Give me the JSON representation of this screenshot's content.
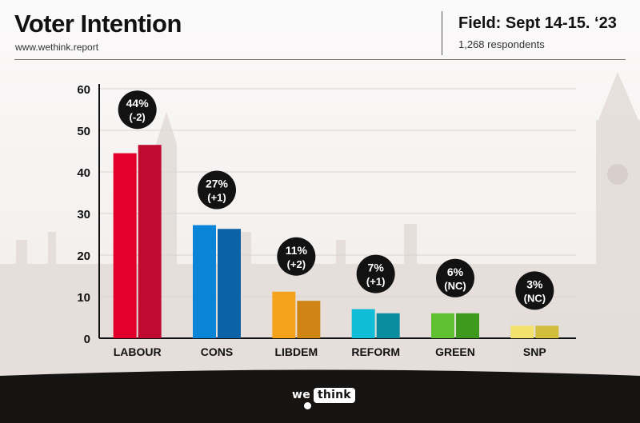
{
  "header": {
    "title": "Voter Intention",
    "website": "www.wethink.report",
    "field": "Field: Sept 14-15. ‘23",
    "respondents": "1,268 respondents"
  },
  "brand": {
    "we": "we",
    "think": "think"
  },
  "colors": {
    "background": "#f6f5f4",
    "footer": "#161413",
    "text": "#111111"
  },
  "chart_data": {
    "type": "bar",
    "title": "",
    "xlabel": "",
    "ylabel": "",
    "ylim": [
      0,
      60
    ],
    "yticks": [
      0,
      10,
      20,
      30,
      40,
      50,
      60
    ],
    "grid": true,
    "categories": [
      "LABOUR",
      "CONS",
      "LIBDEM",
      "REFORM",
      "GREEN",
      "SNP"
    ],
    "series": [
      {
        "values": [
          44.5,
          27.2,
          11.2,
          7.0,
          6.0,
          3.0
        ],
        "colors": [
          "#e2002b",
          "#0a84d6",
          "#f5a21d",
          "#10bdd6",
          "#5fc130",
          "#f3e26e"
        ]
      },
      {
        "values": [
          46.5,
          26.3,
          9.0,
          6.0,
          6.0,
          3.0
        ],
        "colors": [
          "#be0b2f",
          "#0b62a6",
          "#cf8414",
          "#0b8d9f",
          "#3e9a1d",
          "#d2be3c"
        ]
      }
    ],
    "annotations": [
      {
        "category": "LABOUR",
        "value": "44%",
        "change": "(-2)"
      },
      {
        "category": "CONS",
        "value": "27%",
        "change": "(+1)"
      },
      {
        "category": "LIBDEM",
        "value": "11%",
        "change": "(+2)"
      },
      {
        "category": "REFORM",
        "value": "7%",
        "change": "(+1)"
      },
      {
        "category": "GREEN",
        "value": "6%",
        "change": "(NC)"
      },
      {
        "category": "SNP",
        "value": "3%",
        "change": "(NC)"
      }
    ]
  }
}
